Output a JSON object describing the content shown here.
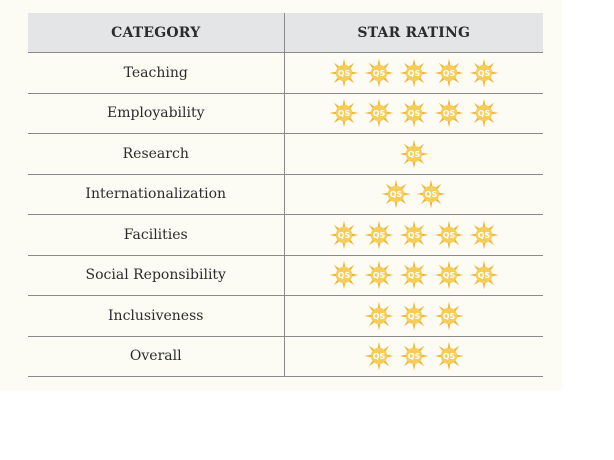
{
  "table": {
    "headers": {
      "category": "CATEGORY",
      "rating": "STAR RATING"
    },
    "rows": [
      {
        "category": "Teaching",
        "stars": 5
      },
      {
        "category": "Employability",
        "stars": 5
      },
      {
        "category": "Research",
        "stars": 1
      },
      {
        "category": "Internationalization",
        "stars": 2
      },
      {
        "category": "Facilities",
        "stars": 5
      },
      {
        "category": "Social Reponsibility",
        "stars": 5
      },
      {
        "category": "Inclusiveness",
        "stars": 3
      },
      {
        "category": "Overall",
        "stars": 3
      }
    ]
  },
  "star_badge": {
    "icon": "qs-star-icon",
    "label": "QS",
    "color_outer": "#f0b63a",
    "color_inner": "#f7cd5a",
    "color_text": "#ffffff"
  }
}
